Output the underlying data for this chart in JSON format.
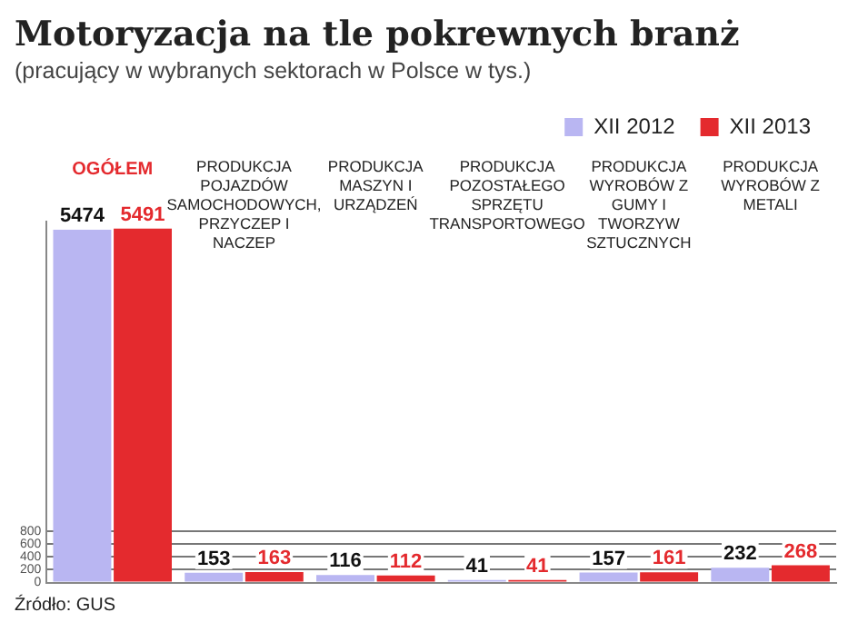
{
  "chart_data": {
    "type": "bar",
    "title": "Motoryzacja na tle pokrewnych branż",
    "subtitle": "(pracujący w wybranych sektorach w Polsce w tys.)",
    "categories": [
      "OGÓŁEM",
      "PRODUKCJA POJAZDÓW SAMOCHODOWYCH, PRZYCZEP I NACZEP",
      "PRODUKCJA MASZYN I URZĄDZEŃ",
      "PRODUKCJA POZOSTAŁEGO SPRZĘTU TRANSPORTOWEGO",
      "PRODUKCJA WYROBÓW Z GUMY I TWORZYW SZTUCZNYCH",
      "PRODUKCJA WYROBÓW Z METALI"
    ],
    "series": [
      {
        "name": "XII 2012",
        "color": "#b9b6f2",
        "values": [
          5474,
          153,
          116,
          41,
          157,
          232
        ]
      },
      {
        "name": "XII 2013",
        "color": "#e42a2e",
        "values": [
          5491,
          163,
          112,
          41,
          161,
          268
        ]
      }
    ],
    "ylim": [
      0,
      5600
    ],
    "yticks": [
      0,
      200,
      400,
      600,
      800
    ],
    "grid": "y",
    "legend": "top right",
    "data_labels": true,
    "annotations": [
      "Źródło: GUS"
    ]
  }
}
